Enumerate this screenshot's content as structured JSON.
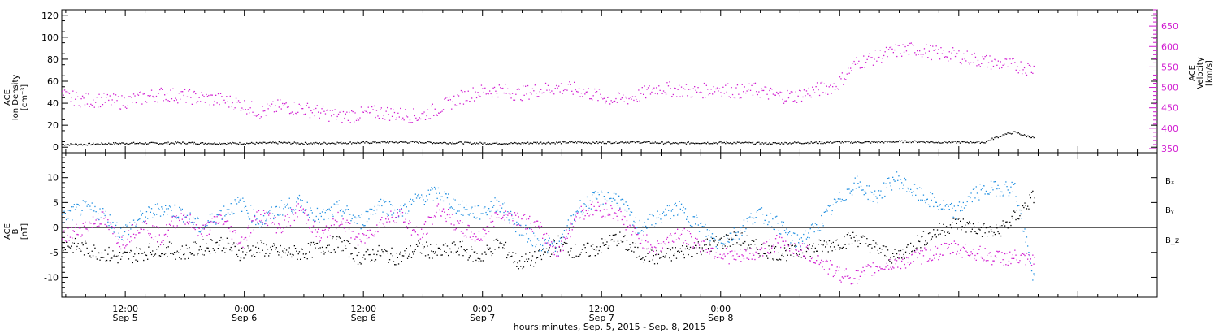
{
  "chart_data": [
    {
      "type": "scatter",
      "panel": "plasma",
      "ylabel_lines": [
        "ACE",
        "Ion Density",
        "[cm⁻³]"
      ],
      "ylim": [
        -5,
        125
      ],
      "yticks": [
        0,
        20,
        40,
        60,
        80,
        100,
        120
      ],
      "right_ylabel_lines": [
        "ACE",
        "Velocity",
        "[km/s]"
      ],
      "right_ylim": [
        340,
        690
      ],
      "right_yticks": [
        350,
        400,
        450,
        500,
        550,
        600,
        650
      ],
      "series": [
        {
          "axis": "left",
          "color": "#000000",
          "x_hours": [
            0,
            2,
            4,
            6,
            8,
            10,
            12,
            14,
            16,
            18,
            20,
            22,
            24,
            26,
            28,
            30,
            32,
            34,
            36,
            38,
            40,
            42,
            44,
            46,
            48,
            50,
            52,
            54,
            56,
            58,
            60,
            62,
            64,
            66,
            68,
            70,
            72,
            74,
            76,
            78,
            80,
            82,
            84,
            86,
            88,
            90,
            92,
            93,
            94,
            95,
            96,
            97,
            98
          ],
          "values": [
            3,
            3,
            3.5,
            4,
            4,
            4,
            4.5,
            4,
            4,
            4,
            4,
            4.5,
            4,
            4,
            4.5,
            4.5,
            5,
            5,
            5,
            4.5,
            4.5,
            4,
            4,
            4,
            4.5,
            4.5,
            5,
            4.5,
            5,
            5,
            4.5,
            4,
            4.5,
            4.5,
            4.5,
            4,
            4,
            4.5,
            4.5,
            5,
            5,
            5,
            5.5,
            5.5,
            5,
            5,
            5,
            5,
            9,
            12,
            14,
            11,
            9
          ]
        },
        {
          "axis": "right",
          "color": "#d01ad0",
          "x_hours": [
            0,
            2,
            4,
            6,
            8,
            10,
            12,
            14,
            16,
            18,
            20,
            22,
            24,
            26,
            28,
            30,
            32,
            34,
            36,
            38,
            40,
            42,
            44,
            46,
            48,
            50,
            52,
            54,
            56,
            58,
            60,
            62,
            64,
            66,
            68,
            70,
            72,
            74,
            76,
            78,
            80,
            82,
            84,
            86,
            88,
            90,
            92,
            94,
            96,
            98
          ],
          "values": [
            480,
            470,
            470,
            465,
            475,
            485,
            480,
            475,
            470,
            460,
            440,
            455,
            450,
            440,
            430,
            435,
            440,
            435,
            430,
            450,
            475,
            490,
            495,
            485,
            495,
            500,
            495,
            480,
            470,
            480,
            500,
            495,
            490,
            500,
            490,
            495,
            480,
            480,
            495,
            505,
            560,
            575,
            590,
            595,
            585,
            580,
            570,
            560,
            555,
            545
          ]
        }
      ]
    },
    {
      "type": "scatter",
      "panel": "magnetic_field",
      "ylabel_lines": [
        "ACE",
        "B",
        "[nT]"
      ],
      "ylim": [
        -14,
        15
      ],
      "yticks": [
        -10,
        -5,
        0,
        5,
        10
      ],
      "zero_line": true,
      "series": [
        {
          "name": "Bₓ",
          "color": "#000000",
          "x_hours": [
            0,
            2,
            4,
            6,
            8,
            10,
            12,
            14,
            16,
            18,
            20,
            22,
            24,
            26,
            28,
            30,
            32,
            34,
            36,
            38,
            40,
            42,
            44,
            46,
            48,
            50,
            52,
            54,
            56,
            58,
            60,
            62,
            64,
            66,
            68,
            70,
            72,
            74,
            76,
            78,
            80,
            82,
            84,
            86,
            88,
            90,
            92,
            94,
            96,
            98
          ],
          "values": [
            -3,
            -4,
            -5,
            -6,
            -5,
            -4,
            -5,
            -4,
            -3,
            -5,
            -4,
            -5,
            -5,
            -4,
            -3,
            -6,
            -5,
            -6,
            -4,
            -5,
            -4,
            -6,
            -3,
            -7,
            -6,
            -3,
            -5,
            -4,
            -2,
            -5,
            -6,
            -5,
            -4,
            -3,
            -2,
            -4,
            -5,
            -5,
            -4,
            -3,
            -2,
            -4,
            -6,
            -3,
            -1,
            1,
            0,
            -1,
            2,
            6.5
          ]
        },
        {
          "name": "Bᵧ",
          "color": "#1e8ee0",
          "x_hours": [
            0,
            2,
            4,
            6,
            8,
            10,
            12,
            14,
            16,
            18,
            20,
            22,
            24,
            26,
            28,
            30,
            32,
            34,
            36,
            38,
            40,
            42,
            44,
            46,
            48,
            50,
            52,
            54,
            56,
            58,
            60,
            62,
            64,
            66,
            68,
            70,
            72,
            74,
            76,
            78,
            80,
            82,
            84,
            86,
            88,
            90,
            92,
            94,
            96,
            98
          ],
          "values": [
            2,
            4,
            3,
            -1,
            2,
            4,
            3,
            0,
            3,
            5,
            1,
            4,
            5,
            2,
            4,
            1,
            5,
            3,
            6,
            7,
            4,
            3,
            5,
            0,
            -3,
            -4,
            4,
            6,
            6,
            0,
            2,
            4,
            1,
            -3,
            -1,
            3,
            1,
            -3,
            0,
            5,
            9,
            6,
            10,
            7,
            5,
            3,
            7,
            8,
            8,
            -11
          ]
        },
        {
          "name": "B_z",
          "color": "#d01ad0",
          "x_hours": [
            0,
            2,
            4,
            6,
            8,
            10,
            12,
            14,
            16,
            18,
            20,
            22,
            24,
            26,
            28,
            30,
            32,
            34,
            36,
            38,
            40,
            42,
            44,
            46,
            48,
            50,
            52,
            54,
            56,
            58,
            60,
            62,
            64,
            66,
            68,
            70,
            72,
            74,
            76,
            78,
            80,
            82,
            84,
            86,
            88,
            90,
            92,
            94,
            96,
            98
          ],
          "values": [
            -2,
            0,
            2,
            -3,
            1,
            -2,
            3,
            -1,
            2,
            -3,
            3,
            0,
            4,
            -2,
            2,
            -3,
            1,
            3,
            -2,
            4,
            0,
            -2,
            3,
            2,
            0,
            -5,
            3,
            4,
            3,
            -2,
            -4,
            -1,
            -3,
            -5,
            -6,
            -5,
            -3,
            -4,
            -6,
            -9,
            -10,
            -8,
            -7,
            -6,
            -5,
            -4,
            -5,
            -6,
            -6,
            -7
          ]
        }
      ],
      "legend": [
        "Bₓ",
        "Bᵧ",
        "B_z"
      ]
    }
  ],
  "x_axis": {
    "range_hours": [
      0,
      110.4
    ],
    "start_hour_of_day": 5.6,
    "major_tick_hours": [
      6.4,
      18.4,
      30.4,
      42.4,
      54.4,
      66.4,
      78.4,
      90.4,
      102.4
    ],
    "minor_tick_step_hours": 2,
    "labels": [
      {
        "time": "12:00",
        "date": "Sep 5"
      },
      {
        "time": "0:00",
        "date": "Sep 6"
      },
      {
        "time": "12:00",
        "date": "Sep 6"
      },
      {
        "time": "0:00",
        "date": "Sep 7"
      },
      {
        "time": "12:00",
        "date": "Sep 7"
      },
      {
        "time": "0:00",
        "date": "Sep 8"
      }
    ],
    "label_hours": [
      6.4,
      18.4,
      30.4,
      42.4,
      54.4,
      66.4
    ],
    "title": "hours:minutes, Sep.  5, 2015 - Sep.  8, 2015"
  }
}
